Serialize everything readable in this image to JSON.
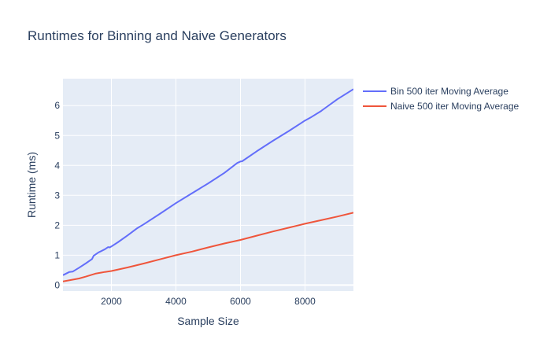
{
  "chart_data": {
    "type": "line",
    "title": "Runtimes for Binning and Naive Generators",
    "xlabel": "Sample Size",
    "ylabel": "Runtime (ms)",
    "xlim": [
      500,
      9500
    ],
    "ylim": [
      -0.2,
      6.9
    ],
    "xticks": [
      2000,
      4000,
      6000,
      8000
    ],
    "xtick_labels": [
      "2000",
      "4000",
      "6000",
      "8000"
    ],
    "yticks": [
      0,
      1,
      2,
      3,
      4,
      5,
      6
    ],
    "ytick_labels": [
      "0",
      "1",
      "2",
      "3",
      "4",
      "5",
      "6"
    ],
    "grid": true,
    "legend_position": "right",
    "series": [
      {
        "name": "Bin 500 iter Moving Average",
        "color": "#636efa",
        "x": [
          500,
          700,
          800,
          1000,
          1200,
          1400,
          1450,
          1600,
          1800,
          1900,
          1950,
          2000,
          2200,
          2500,
          2800,
          3000,
          3500,
          4000,
          4500,
          5000,
          5500,
          5900,
          6000,
          6050,
          6500,
          7000,
          7500,
          8000,
          8200,
          8500,
          8550,
          9000,
          9500
        ],
        "y": [
          0.33,
          0.44,
          0.45,
          0.58,
          0.72,
          0.87,
          0.98,
          1.09,
          1.2,
          1.27,
          1.26,
          1.29,
          1.43,
          1.66,
          1.9,
          2.03,
          2.38,
          2.74,
          3.07,
          3.4,
          3.75,
          4.08,
          4.13,
          4.14,
          4.47,
          4.82,
          5.15,
          5.5,
          5.62,
          5.82,
          5.86,
          6.21,
          6.55
        ]
      },
      {
        "name": "Naive 500 iter Moving Average",
        "color": "#ef553b",
        "x": [
          500,
          1000,
          1200,
          1500,
          1800,
          2000,
          2500,
          3000,
          3500,
          4000,
          4500,
          5000,
          5500,
          6000,
          6500,
          7000,
          7500,
          8000,
          8500,
          9000,
          9500
        ],
        "y": [
          0.12,
          0.22,
          0.28,
          0.38,
          0.44,
          0.47,
          0.59,
          0.72,
          0.86,
          1.0,
          1.12,
          1.26,
          1.39,
          1.51,
          1.65,
          1.79,
          1.92,
          2.05,
          2.17,
          2.29,
          2.42
        ]
      }
    ]
  }
}
